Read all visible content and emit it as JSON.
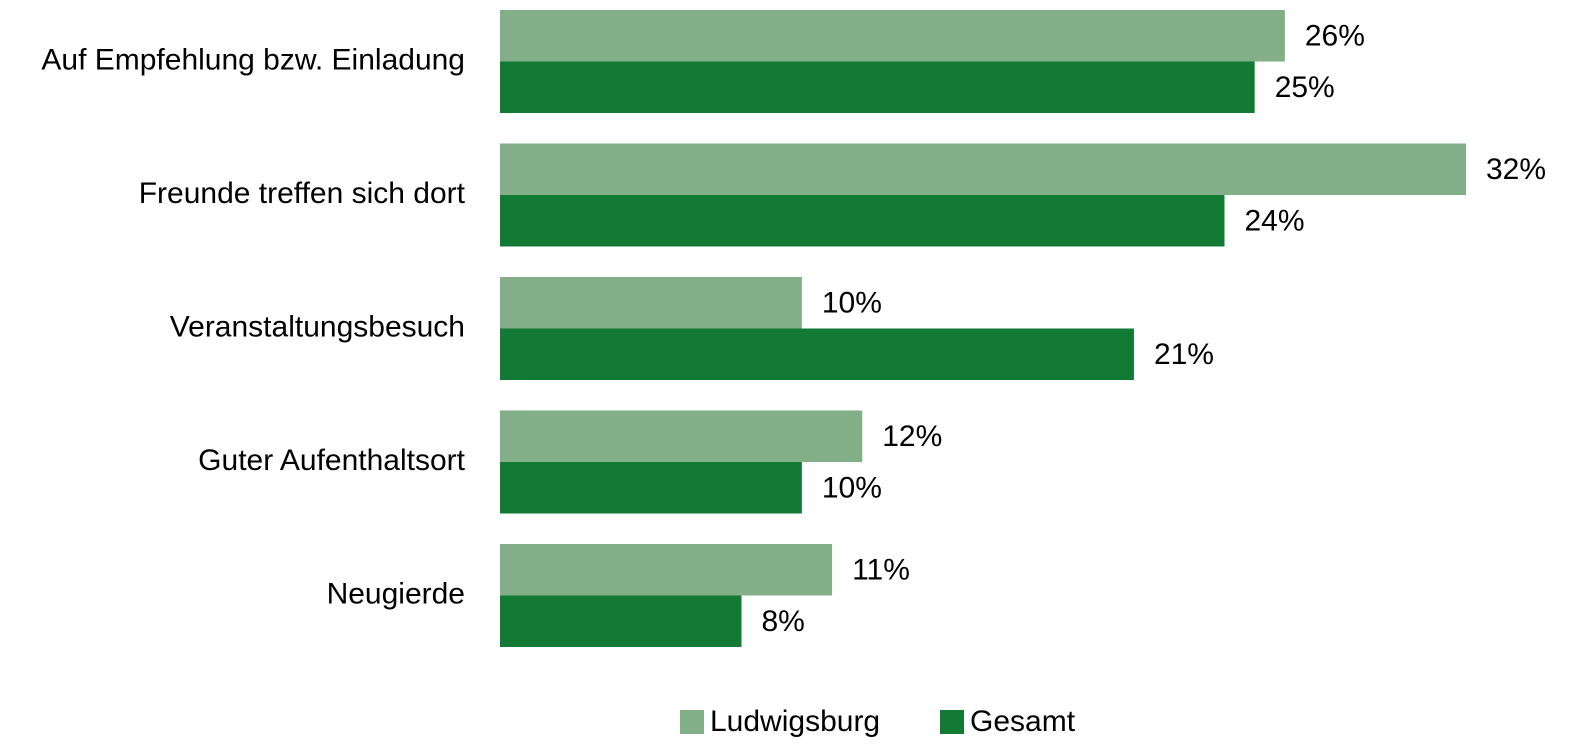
{
  "chart_data": {
    "type": "bar",
    "orientation": "horizontal",
    "categories": [
      "Auf Empfehlung bzw. Einladung",
      "Freunde treffen sich dort",
      "Veranstaltungsbesuch",
      "Guter Aufenthaltsort",
      "Neugierde"
    ],
    "series": [
      {
        "name": "Ludwigsburg",
        "color": "#82ae88",
        "values": [
          26,
          32,
          10,
          12,
          11
        ],
        "value_labels": [
          "26%",
          "32%",
          "10%",
          "12%",
          "11%"
        ]
      },
      {
        "name": "Gesamt",
        "color": "#137a36",
        "values": [
          25,
          24,
          21,
          10,
          8
        ],
        "value_labels": [
          "25%",
          "24%",
          "21%",
          "10%",
          "8%"
        ]
      }
    ],
    "legend": "bottom"
  }
}
